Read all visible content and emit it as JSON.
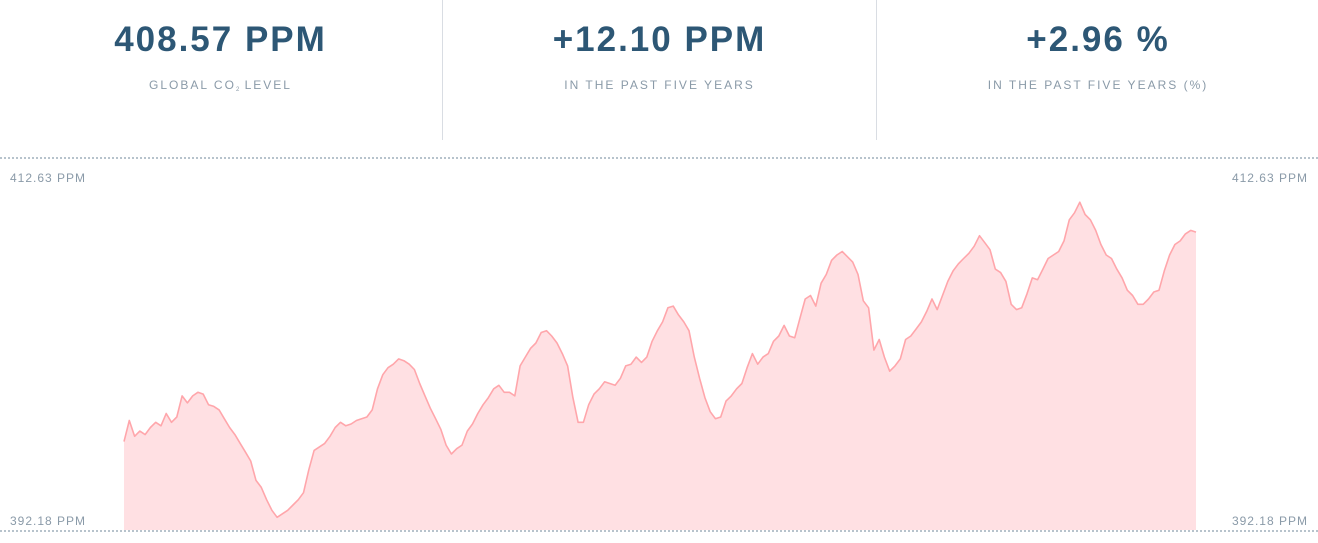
{
  "stats": [
    {
      "value": "408.57 PPM",
      "label_pre": "GLOBAL CO",
      "label_sub": "2",
      "label_post": " LEVEL"
    },
    {
      "value": "+12.10 PPM",
      "label": "IN THE PAST FIVE YEARS"
    },
    {
      "value": "+2.96 %",
      "label": "IN THE PAST FIVE YEARS (%)"
    }
  ],
  "chart_data": {
    "type": "area",
    "title": "",
    "ylim": [
      392.18,
      412.63
    ],
    "y_max_label": "412.63 PPM",
    "y_min_label": "392.18 PPM",
    "grid": "dashed lines at top and bottom",
    "line_color": "#ffa6ab",
    "fill_color": "#ffe0e3",
    "series": [
      {
        "values": [
          397.2,
          398.4,
          397.5,
          397.8,
          397.6,
          398.0,
          398.3,
          398.1,
          398.8,
          398.3,
          398.6,
          399.8,
          399.4,
          399.8,
          400.0,
          399.9,
          399.3,
          399.2,
          399.0,
          398.5,
          398.0,
          397.6,
          397.1,
          396.6,
          396.1,
          395.0,
          394.6,
          393.9,
          393.3,
          392.9,
          393.1,
          393.3,
          393.6,
          393.9,
          394.3,
          395.6,
          396.7,
          396.9,
          397.1,
          397.5,
          398.0,
          398.3,
          398.1,
          398.2,
          398.4,
          398.5,
          398.6,
          399.0,
          400.2,
          401.0,
          401.4,
          401.6,
          401.9,
          401.8,
          401.6,
          401.3,
          400.5,
          399.8,
          399.1,
          398.5,
          397.9,
          397.0,
          396.5,
          396.8,
          397.0,
          397.8,
          398.2,
          398.8,
          399.3,
          399.7,
          400.2,
          400.4,
          400.0,
          400.0,
          399.8,
          401.5,
          402.0,
          402.5,
          402.8,
          403.4,
          403.5,
          403.2,
          402.8,
          402.2,
          401.5,
          399.7,
          398.3,
          398.3,
          399.3,
          399.9,
          400.2,
          400.6,
          400.5,
          400.4,
          400.8,
          401.5,
          401.6,
          402.0,
          401.7,
          402.0,
          402.9,
          403.5,
          404.0,
          404.8,
          404.9,
          404.4,
          404.0,
          403.5,
          402.0,
          400.8,
          399.7,
          398.9,
          398.5,
          398.6,
          399.5,
          399.8,
          400.2,
          400.5,
          401.4,
          402.2,
          401.6,
          402.0,
          402.2,
          402.9,
          403.2,
          403.8,
          403.2,
          403.1,
          404.2,
          405.3,
          405.5,
          404.9,
          406.2,
          406.7,
          407.5,
          407.8,
          408.0,
          407.7,
          407.4,
          406.7,
          405.2,
          404.8,
          402.4,
          403.0,
          402.0,
          401.2,
          401.5,
          401.9,
          403.0,
          403.2,
          403.6,
          404.0,
          404.6,
          405.3,
          404.7,
          405.5,
          406.3,
          406.9,
          407.3,
          407.6,
          407.9,
          408.3,
          408.9,
          408.5,
          408.1,
          407.0,
          406.8,
          406.3,
          405.0,
          404.7,
          404.8,
          405.6,
          406.5,
          406.4,
          407.0,
          407.6,
          407.8,
          408.0,
          408.6,
          409.8,
          410.2,
          410.8,
          410.1,
          409.8,
          409.2,
          408.4,
          407.8,
          407.6,
          407.0,
          406.5,
          405.8,
          405.5,
          405.0,
          405.0,
          405.3,
          405.7,
          405.8,
          406.9,
          407.8,
          408.4,
          408.6,
          409.0,
          409.2,
          409.1
        ]
      }
    ]
  }
}
